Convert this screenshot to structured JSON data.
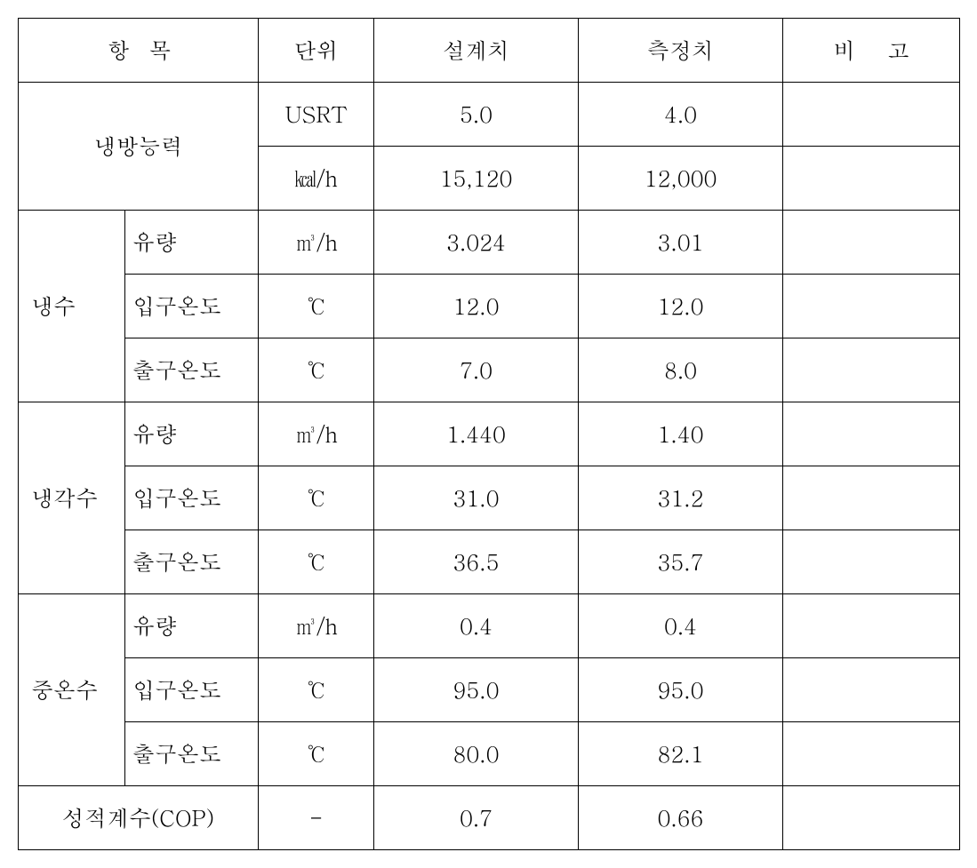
{
  "table": {
    "border_color": "#000000",
    "background": "#ffffff",
    "header": {
      "item": "항목",
      "unit": "단위",
      "design": "설계치",
      "measure": "측정치",
      "note": "비 고"
    },
    "rows": {
      "cooling_capacity": {
        "label": "냉방능력",
        "r1": {
          "unit": "USRT",
          "design": "5.0",
          "measure": "4.0",
          "note": ""
        },
        "r2": {
          "unit": "㎉/h",
          "design": "15,120",
          "measure": "12,000",
          "note": ""
        }
      },
      "chilled_water": {
        "label": "냉수",
        "flow": {
          "label": "유량",
          "unit": "㎥/h",
          "design": "3.024",
          "measure": "3.01",
          "note": ""
        },
        "inlet": {
          "label": "입구온도",
          "unit": "℃",
          "design": "12.0",
          "measure": "12.0",
          "note": ""
        },
        "outlet": {
          "label": "출구온도",
          "unit": "℃",
          "design": "7.0",
          "measure": "8.0",
          "note": ""
        }
      },
      "cooling_water": {
        "label": "냉각수",
        "flow": {
          "label": "유량",
          "unit": "㎥/h",
          "design": "1.440",
          "measure": "1.40",
          "note": ""
        },
        "inlet": {
          "label": "입구온도",
          "unit": "℃",
          "design": "31.0",
          "measure": "31.2",
          "note": ""
        },
        "outlet": {
          "label": "출구온도",
          "unit": "℃",
          "design": "36.5",
          "measure": "35.7",
          "note": ""
        }
      },
      "hot_water": {
        "label": "중온수",
        "flow": {
          "label": "유량",
          "unit": "㎥/h",
          "design": "0.4",
          "measure": "0.4",
          "note": ""
        },
        "inlet": {
          "label": "입구온도",
          "unit": "℃",
          "design": "95.0",
          "measure": "95.0",
          "note": ""
        },
        "outlet": {
          "label": "출구온도",
          "unit": "℃",
          "design": "80.0",
          "measure": "82.1",
          "note": ""
        }
      },
      "cop": {
        "label": "성적계수(COP)",
        "unit": "-",
        "design": "0.7",
        "measure": "0.66",
        "note": ""
      }
    }
  }
}
